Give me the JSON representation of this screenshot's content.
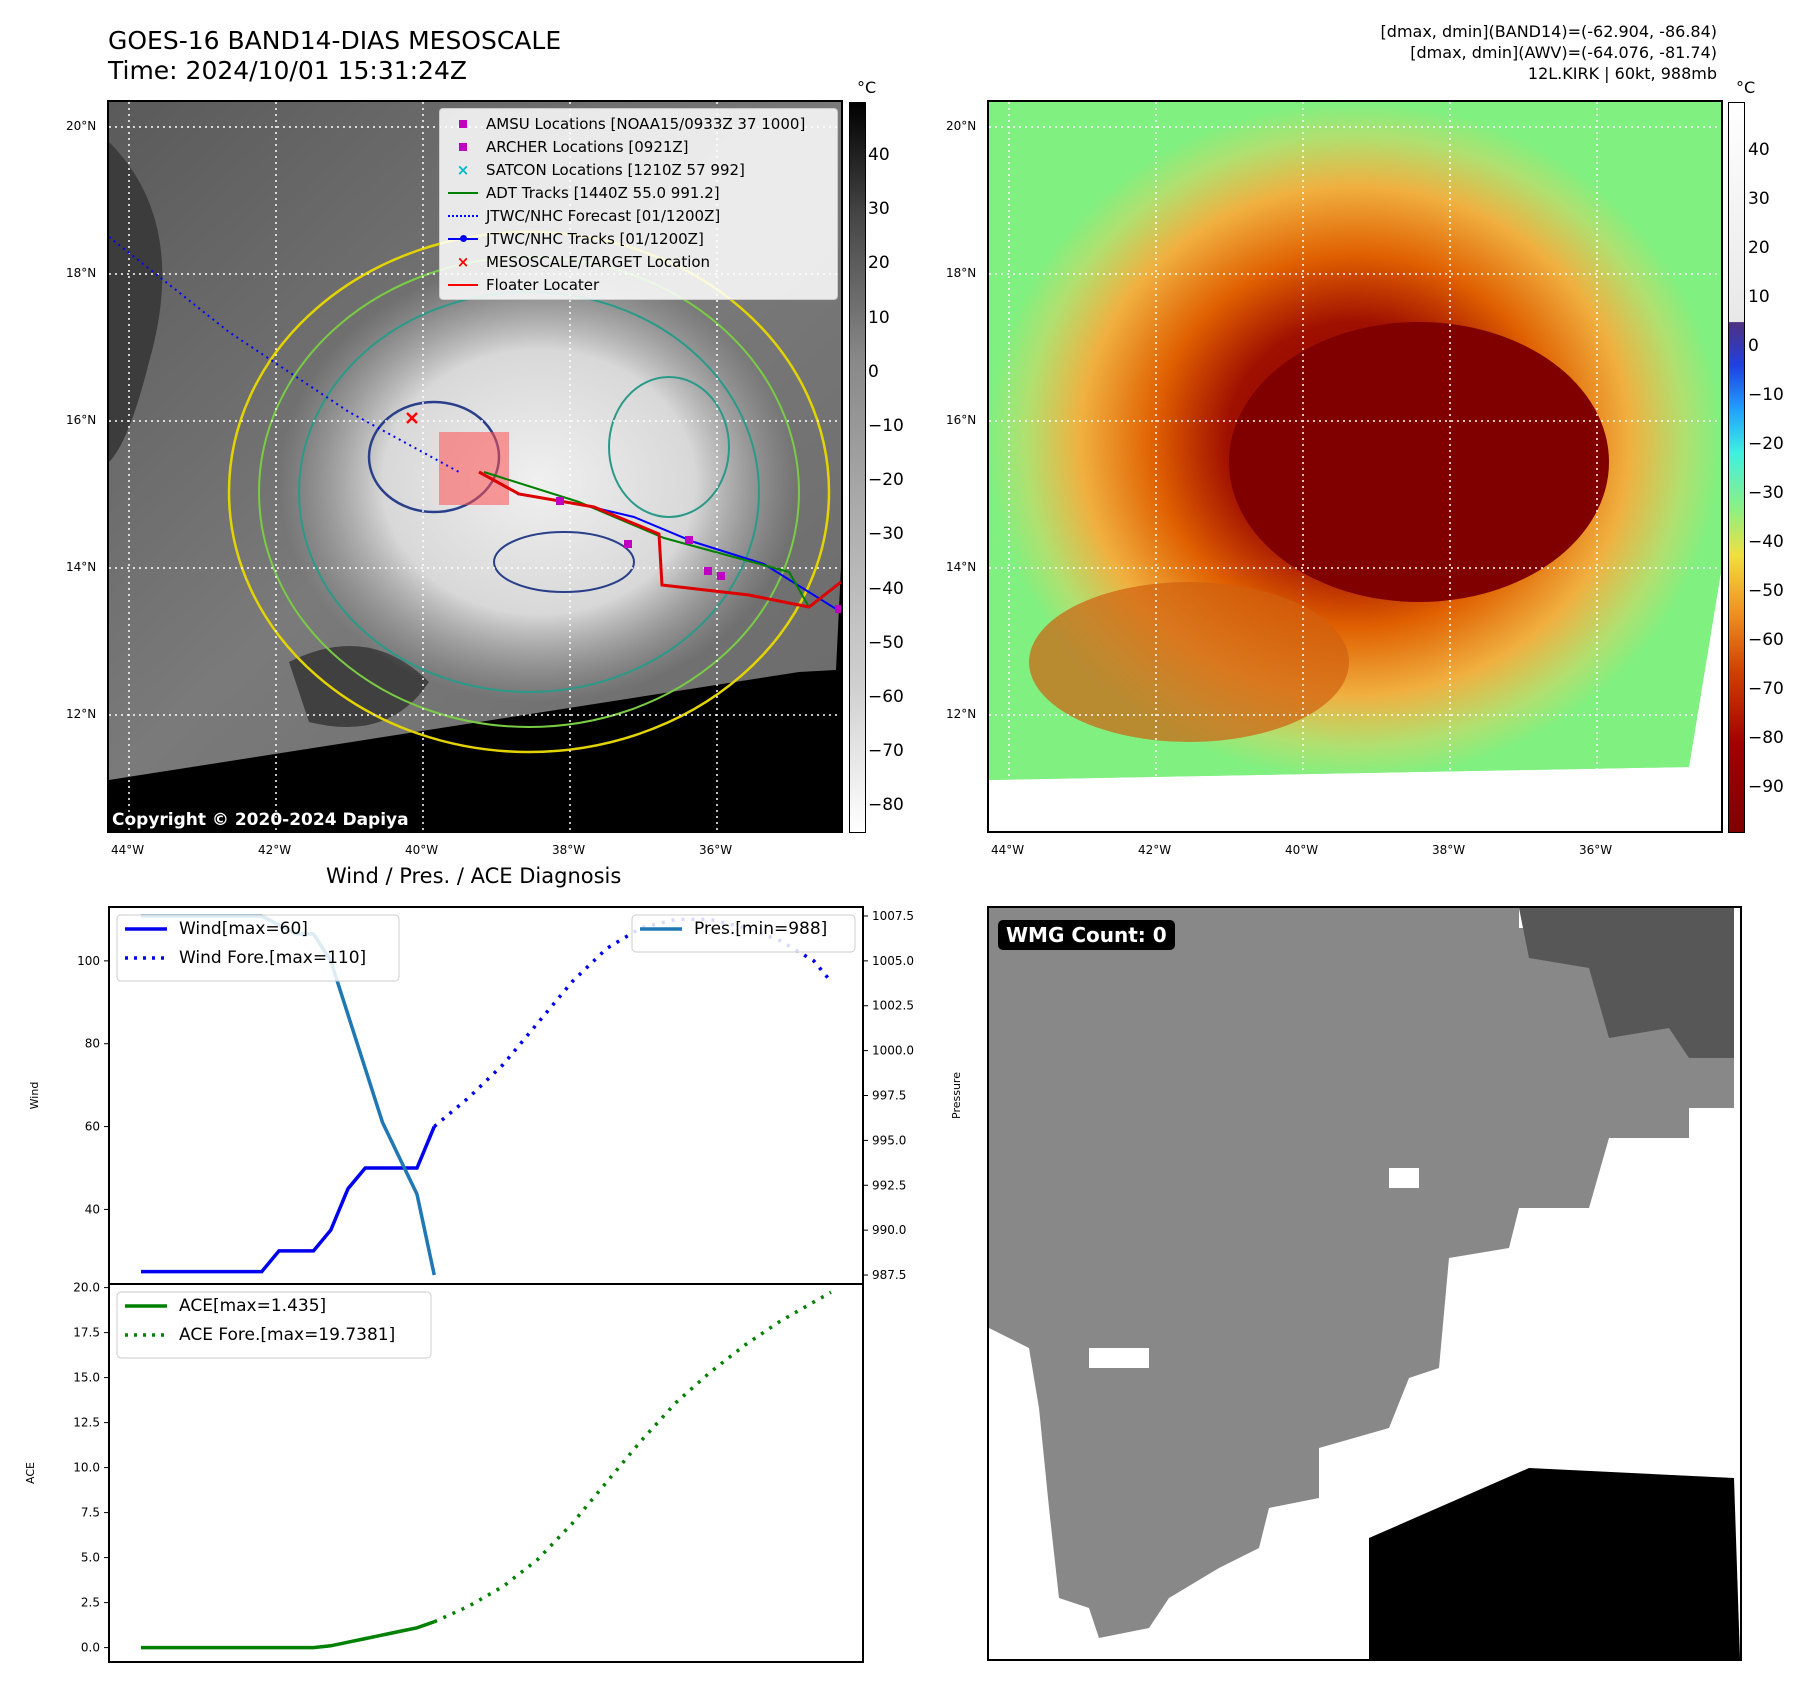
{
  "header": {
    "title_line1": "GOES-16 BAND14-DIAS MESOSCALE",
    "title_line2": "Time: 2024/10/01 15:31:24Z",
    "info_line1": "[dmax, dmin](BAND14)=(-62.904, -86.84)",
    "info_line2": "[dmax, dmin](AWV)=(-64.076, -81.74)",
    "info_line3": "12L.KIRK | 60kt, 988mb"
  },
  "map": {
    "lat_labels": [
      "20°N",
      "18°N",
      "16°N",
      "14°N",
      "12°N"
    ],
    "lon_labels": [
      "44°W",
      "42°W",
      "40°W",
      "38°W",
      "36°W"
    ],
    "copyright": "Copyright © 2020-2024 Dapiya",
    "legend": [
      {
        "label": "AMSU Locations [NOAA15/0933Z 37 1000]",
        "symbol": "square",
        "color": "#c000c0"
      },
      {
        "label": "ARCHER Locations [0921Z]",
        "symbol": "square",
        "color": "#c000c0"
      },
      {
        "label": "SATCON Locations [1210Z 57 992]",
        "symbol": "x",
        "color": "#00b8c8"
      },
      {
        "label": "ADT Tracks [1440Z 55.0 991.2]",
        "symbol": "line",
        "color": "#008000"
      },
      {
        "label": "JTWC/NHC Forecast [01/1200Z]",
        "symbol": "dotted",
        "color": "#0000ff"
      },
      {
        "label": "JTWC/NHC Tracks [01/1200Z]",
        "symbol": "line-dot",
        "color": "#0000ff"
      },
      {
        "label": "MESOSCALE/TARGET Location",
        "symbol": "x",
        "color": "#ff0000"
      },
      {
        "label": "Floater Locater",
        "symbol": "line",
        "color": "#ff0000"
      }
    ],
    "gray_colorbar": {
      "unit": "°C",
      "ticks": [
        "40",
        "30",
        "20",
        "10",
        "0",
        "−10",
        "−20",
        "−30",
        "−40",
        "−50",
        "−60",
        "−70",
        "−80"
      ]
    },
    "color_colorbar": {
      "unit": "°C",
      "ticks": [
        "40",
        "30",
        "20",
        "10",
        "0",
        "−10",
        "−20",
        "−30",
        "−40",
        "−50",
        "−60",
        "−70",
        "−80",
        "−90"
      ]
    }
  },
  "wmg": {
    "badge": "WMG Count: 0"
  },
  "chart_data": [
    {
      "type": "line",
      "title": "Wind / Pres. / ACE Diagnosis",
      "ylabel": "Wind",
      "ylabel_right": "Pressure",
      "ylim": [
        22,
        113
      ],
      "y_ticks": [
        "40",
        "60",
        "80",
        "100"
      ],
      "y2lim": [
        987.0,
        1008.0
      ],
      "y2_ticks": [
        "987.5",
        "990.0",
        "992.5",
        "995.0",
        "997.5",
        "1000.0",
        "1002.5",
        "1005.0",
        "1007.5"
      ],
      "x": [
        0,
        1,
        2,
        3,
        4,
        5,
        6,
        7,
        8,
        9,
        10,
        11,
        12,
        13,
        14,
        15,
        16,
        17,
        18,
        19,
        20,
        21,
        22,
        23,
        24,
        25,
        26,
        27,
        28,
        29,
        30,
        31,
        32,
        33,
        34,
        35,
        36,
        37,
        38,
        39,
        40
      ],
      "series": [
        {
          "name": "Wind[max=60]",
          "style": "solid",
          "color": "#0000ee",
          "x": [
            0,
            1,
            2,
            3,
            4,
            5,
            6,
            7,
            8,
            9,
            10,
            11,
            12,
            13,
            14,
            15,
            16,
            17
          ],
          "values": [
            25,
            25,
            25,
            25,
            25,
            25,
            25,
            25,
            30,
            30,
            30,
            35,
            45,
            50,
            50,
            50,
            50,
            60
          ]
        },
        {
          "name": "Wind Fore.[max=110]",
          "style": "dotted",
          "color": "#0000ee",
          "x": [
            17,
            19,
            21,
            23,
            25,
            27,
            29,
            31,
            33,
            35,
            37,
            39,
            40
          ],
          "values": [
            60,
            67,
            75,
            85,
            95,
            103,
            108,
            110,
            110,
            108,
            105,
            100,
            95
          ]
        },
        {
          "name": "Pres.[min=988]",
          "style": "solid",
          "color": "#1f77b4",
          "axis": "right",
          "x": [
            0,
            1,
            2,
            3,
            4,
            5,
            6,
            7,
            8,
            9,
            10,
            11,
            12,
            13,
            14,
            15,
            16,
            17
          ],
          "values": [
            1007.5,
            1007.5,
            1007.5,
            1007.5,
            1007.5,
            1007.5,
            1007.5,
            1007.5,
            1007.0,
            1006.5,
            1006.5,
            1005.0,
            1002.0,
            999.0,
            996.0,
            994.0,
            992.0,
            987.5
          ]
        }
      ]
    },
    {
      "type": "line",
      "ylabel": "ACE",
      "ylim": [
        -0.8,
        20.2
      ],
      "y_ticks": [
        "0.0",
        "2.5",
        "5.0",
        "7.5",
        "10.0",
        "12.5",
        "15.0",
        "17.5",
        "20.0"
      ],
      "series": [
        {
          "name": "ACE[max=1.435]",
          "style": "solid",
          "color": "#008000",
          "x": [
            0,
            2,
            4,
            6,
            8,
            10,
            11,
            12,
            13,
            14,
            15,
            16,
            17
          ],
          "values": [
            0,
            0,
            0,
            0,
            0,
            0,
            0.1,
            0.3,
            0.5,
            0.7,
            0.9,
            1.1,
            1.435
          ]
        },
        {
          "name": "ACE Fore.[max=19.7381]",
          "style": "dotted",
          "color": "#008000",
          "x": [
            17,
            19,
            21,
            23,
            25,
            27,
            29,
            31,
            33,
            35,
            37,
            39,
            40
          ],
          "values": [
            1.435,
            2.3,
            3.4,
            4.9,
            6.9,
            9.2,
            11.5,
            13.6,
            15.3,
            16.8,
            18.1,
            19.2,
            19.74
          ]
        }
      ]
    }
  ]
}
